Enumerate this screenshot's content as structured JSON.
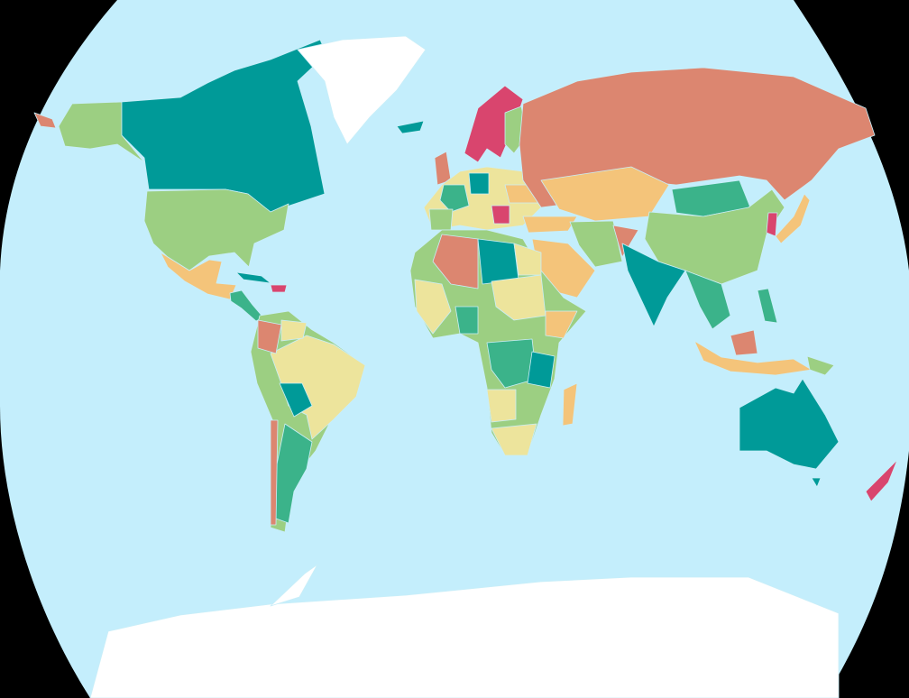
{
  "map": {
    "projection_shape": "robinson-like",
    "background_color": "#000000",
    "ocean_color": "#c4eefc",
    "ice_color": "#ffffff",
    "palette": {
      "teal": "#009a98",
      "light_green": "#9ccf82",
      "green": "#3bb38a",
      "yellow": "#ede49c",
      "orange": "#f4c47a",
      "salmon": "#dc8670",
      "pink": "#d9456e"
    }
  }
}
